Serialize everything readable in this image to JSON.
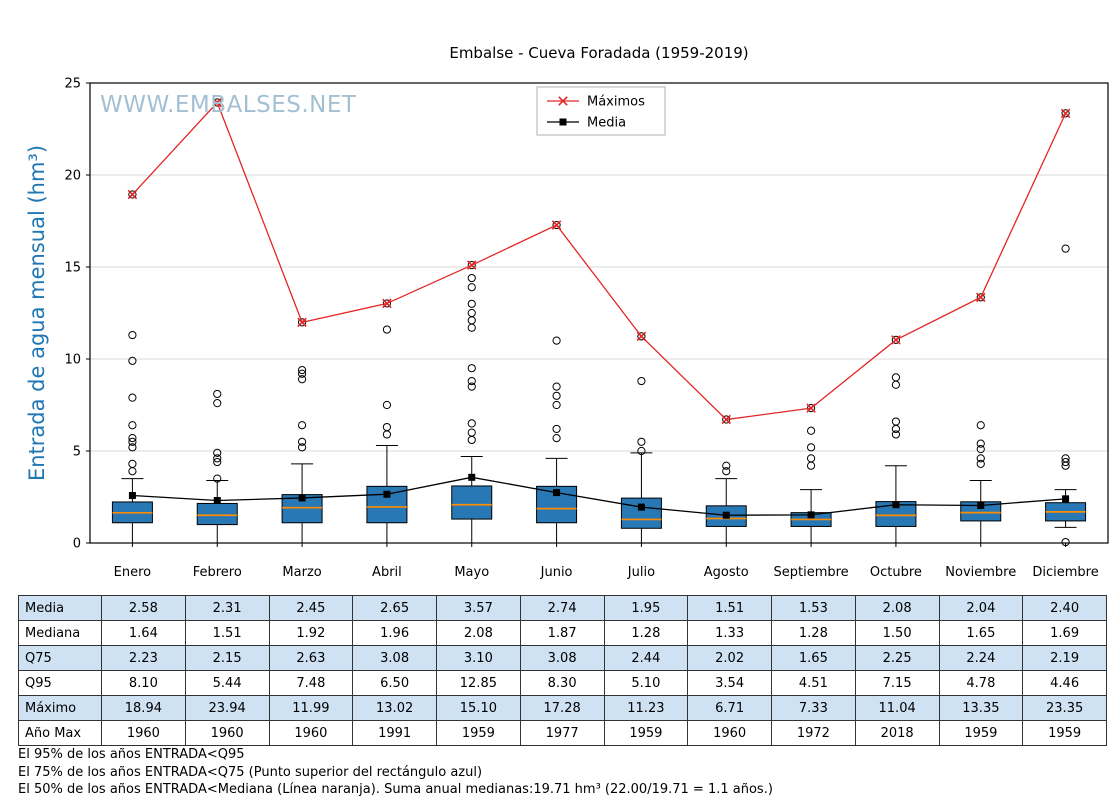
{
  "title": "Embalse - Cueva Foradada (1959-2019)",
  "watermark": "WWW.EMBALSES.NET",
  "ylabel": "Entrada de agua mensual (hm³)",
  "chart_data": {
    "type": "boxplot",
    "title": "Embalse - Cueva Foradada (1959-2019)",
    "ylabel": "Entrada de agua mensual (hm³)",
    "ylim": [
      0,
      25
    ],
    "yticks": [
      0,
      5,
      10,
      15,
      20,
      25
    ],
    "grid": "horizontal",
    "legend_position": "top-center",
    "box_fill": "#2878b5",
    "box_edge": "#000000",
    "median_color": "#ff8c00",
    "categories": [
      "Enero",
      "Febrero",
      "Marzo",
      "Abril",
      "Mayo",
      "Junio",
      "Julio",
      "Agosto",
      "Septiembre",
      "Octubre",
      "Noviembre",
      "Diciembre"
    ],
    "series": [
      {
        "name": "Máximos",
        "type": "line",
        "marker": "x",
        "color": "#e32626",
        "values": [
          18.94,
          23.94,
          11.99,
          13.02,
          15.1,
          17.28,
          11.23,
          6.71,
          7.33,
          11.04,
          13.35,
          23.35
        ]
      },
      {
        "name": "Media",
        "type": "line",
        "marker": "square",
        "color": "#000000",
        "values": [
          2.58,
          2.31,
          2.45,
          2.65,
          3.57,
          2.74,
          1.95,
          1.51,
          1.53,
          2.08,
          2.04,
          2.4
        ]
      }
    ],
    "boxes": [
      {
        "month": "Enero",
        "q1": 1.1,
        "median": 1.64,
        "q3": 2.23,
        "whisker_low": 0.0,
        "whisker_high": 3.5,
        "outliers": [
          3.9,
          4.3,
          5.2,
          5.5,
          5.7,
          6.4,
          7.9,
          9.9,
          11.3,
          18.94
        ]
      },
      {
        "month": "Febrero",
        "q1": 1.0,
        "median": 1.51,
        "q3": 2.15,
        "whisker_low": 0.0,
        "whisker_high": 3.4,
        "outliers": [
          3.5,
          4.4,
          4.6,
          4.9,
          7.6,
          8.1,
          23.94
        ]
      },
      {
        "month": "Marzo",
        "q1": 1.1,
        "median": 1.92,
        "q3": 2.63,
        "whisker_low": 0.0,
        "whisker_high": 4.3,
        "outliers": [
          5.2,
          5.5,
          6.4,
          8.9,
          9.2,
          9.4,
          11.99
        ]
      },
      {
        "month": "Abril",
        "q1": 1.1,
        "median": 1.96,
        "q3": 3.08,
        "whisker_low": 0.0,
        "whisker_high": 5.3,
        "outliers": [
          5.9,
          6.3,
          7.5,
          11.6,
          13.02
        ]
      },
      {
        "month": "Mayo",
        "q1": 1.3,
        "median": 2.08,
        "q3": 3.1,
        "whisker_low": 0.0,
        "whisker_high": 4.7,
        "outliers": [
          5.6,
          6.0,
          6.5,
          8.5,
          8.8,
          9.5,
          11.7,
          12.1,
          12.5,
          13.0,
          13.9,
          14.4,
          15.1
        ]
      },
      {
        "month": "Junio",
        "q1": 1.1,
        "median": 1.87,
        "q3": 3.08,
        "whisker_low": 0.0,
        "whisker_high": 4.6,
        "outliers": [
          5.7,
          6.2,
          7.5,
          8.0,
          8.5,
          11.0,
          17.28
        ]
      },
      {
        "month": "Julio",
        "q1": 0.8,
        "median": 1.28,
        "q3": 2.44,
        "whisker_low": 0.0,
        "whisker_high": 4.9,
        "outliers": [
          5.0,
          5.5,
          8.8,
          11.23
        ]
      },
      {
        "month": "Agosto",
        "q1": 0.9,
        "median": 1.33,
        "q3": 2.02,
        "whisker_low": 0.0,
        "whisker_high": 3.5,
        "outliers": [
          3.9,
          4.2,
          6.71
        ]
      },
      {
        "month": "Septiembre",
        "q1": 0.9,
        "median": 1.28,
        "q3": 1.65,
        "whisker_low": 0.0,
        "whisker_high": 2.9,
        "outliers": [
          4.2,
          4.6,
          5.2,
          6.1,
          7.33
        ]
      },
      {
        "month": "Octubre",
        "q1": 0.9,
        "median": 1.5,
        "q3": 2.25,
        "whisker_low": 0.0,
        "whisker_high": 4.2,
        "outliers": [
          5.9,
          6.2,
          6.6,
          8.6,
          9.0,
          11.04
        ]
      },
      {
        "month": "Noviembre",
        "q1": 1.2,
        "median": 1.65,
        "q3": 2.24,
        "whisker_low": 0.0,
        "whisker_high": 3.4,
        "outliers": [
          4.3,
          4.6,
          5.1,
          5.4,
          6.4,
          13.35
        ]
      },
      {
        "month": "Diciembre",
        "q1": 1.2,
        "median": 1.69,
        "q3": 2.19,
        "whisker_low": 0.85,
        "whisker_high": 2.9,
        "outliers": [
          0.05,
          4.2,
          4.4,
          4.6,
          16.0,
          23.35
        ]
      }
    ]
  },
  "table": {
    "row_headers": [
      "Media",
      "Mediana",
      "Q75",
      "Q95",
      "Máximo",
      "Año Max"
    ],
    "columns": [
      "Enero",
      "Febrero",
      "Marzo",
      "Abril",
      "Mayo",
      "Junio",
      "Julio",
      "Agosto",
      "Septiembre",
      "Octubre",
      "Noviembre",
      "Diciembre"
    ],
    "rows": [
      [
        "2.58",
        "2.31",
        "2.45",
        "2.65",
        "3.57",
        "2.74",
        "1.95",
        "1.51",
        "1.53",
        "2.08",
        "2.04",
        "2.40"
      ],
      [
        "1.64",
        "1.51",
        "1.92",
        "1.96",
        "2.08",
        "1.87",
        "1.28",
        "1.33",
        "1.28",
        "1.50",
        "1.65",
        "1.69"
      ],
      [
        "2.23",
        "2.15",
        "2.63",
        "3.08",
        "3.10",
        "3.08",
        "2.44",
        "2.02",
        "1.65",
        "2.25",
        "2.24",
        "2.19"
      ],
      [
        "8.10",
        "5.44",
        "7.48",
        "6.50",
        "12.85",
        "8.30",
        "5.10",
        "3.54",
        "4.51",
        "7.15",
        "4.78",
        "4.46"
      ],
      [
        "18.94",
        "23.94",
        "11.99",
        "13.02",
        "15.10",
        "17.28",
        "11.23",
        "6.71",
        "7.33",
        "11.04",
        "13.35",
        "23.35"
      ],
      [
        "1960",
        "1960",
        "1960",
        "1991",
        "1959",
        "1977",
        "1959",
        "1960",
        "1972",
        "2018",
        "1959",
        "1959"
      ]
    ]
  },
  "footnotes": [
    "El 95% de los años ENTRADA<Q95",
    "El 75% de los años ENTRADA<Q75 (Punto superior del rectángulo azul)",
    "El 50% de los años ENTRADA<Mediana (Línea naranja). Suma anual medianas:19.71 hm³ (22.00/19.71 = 1.1 años.)"
  ]
}
